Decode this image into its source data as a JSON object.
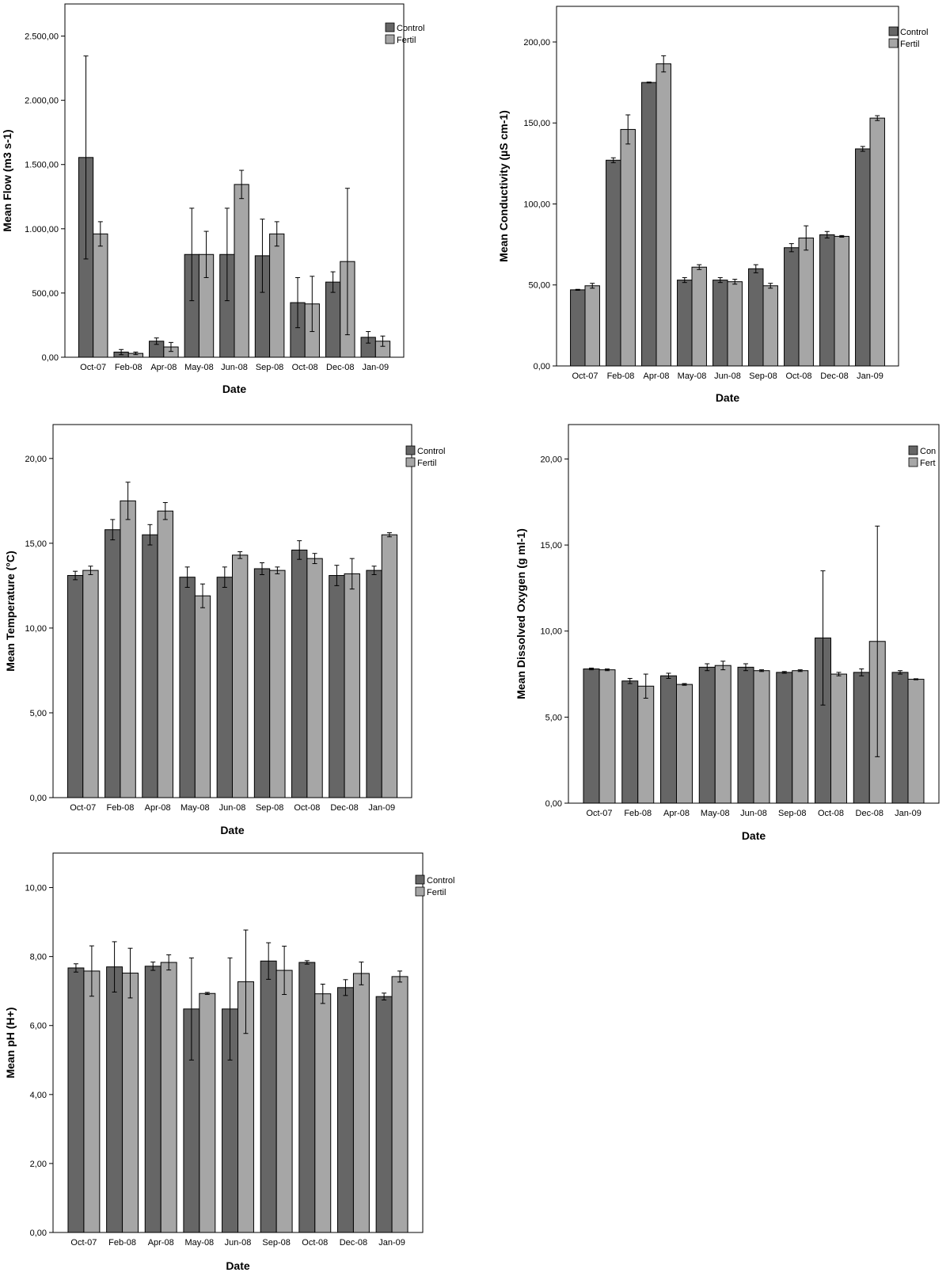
{
  "chart_data": [
    {
      "type": "bar",
      "categories": [
        "Oct-07",
        "Feb-08",
        "Apr-08",
        "May-08",
        "Jun-08",
        "Sep-08",
        "Oct-08",
        "Dec-08",
        "Jan-09"
      ],
      "xlabel": "Date",
      "ylabel": "Mean Flow (m3 s-1)",
      "ylim": [
        0,
        2750
      ],
      "yticks": [
        0,
        500,
        1000,
        1500,
        2000,
        2500
      ],
      "ytick_labels": [
        "0,00",
        "500,00",
        "1.000,00",
        "1.500,00",
        "2.000,00",
        "2.500,00"
      ],
      "legend": "top-right",
      "series": [
        {
          "name": "Control",
          "color": "#666666",
          "values": [
            1555,
            40,
            125,
            800,
            800,
            790,
            425,
            585,
            155
          ],
          "err": [
            790,
            20,
            25,
            360,
            360,
            285,
            195,
            80,
            45
          ]
        },
        {
          "name": "Fertil",
          "color": "#a6a6a6",
          "values": [
            960,
            30,
            80,
            800,
            1345,
            960,
            415,
            745,
            125
          ],
          "err": [
            95,
            10,
            35,
            180,
            110,
            95,
            215,
            570,
            40
          ]
        }
      ]
    },
    {
      "type": "bar",
      "categories": [
        "Oct-07",
        "Feb-08",
        "Apr-08",
        "May-08",
        "Jun-08",
        "Sep-08",
        "Oct-08",
        "Dec-08",
        "Jan-09"
      ],
      "xlabel": "Date",
      "ylabel": "Mean Conductivity (µS cm-1)",
      "ylim": [
        0,
        222
      ],
      "yticks": [
        0,
        50,
        100,
        150,
        200
      ],
      "ytick_labels": [
        "0,00",
        "50,00",
        "100,00",
        "150,00",
        "200,00"
      ],
      "legend": "top-right",
      "series": [
        {
          "name": "Control",
          "color": "#666666",
          "values": [
            47,
            127,
            175,
            53,
            53,
            60,
            73,
            81,
            134
          ],
          "err": [
            0.3,
            1.5,
            0.3,
            1.5,
            1.5,
            2.5,
            2.5,
            2,
            1.5
          ]
        },
        {
          "name": "Fertil",
          "color": "#a6a6a6",
          "values": [
            49.5,
            146,
            186.5,
            61,
            52,
            49.5,
            79,
            80,
            153
          ],
          "err": [
            1.5,
            9,
            5,
            1.5,
            1.5,
            1.5,
            7.5,
            0.5,
            1.5
          ]
        }
      ]
    },
    {
      "type": "bar",
      "categories": [
        "Oct-07",
        "Feb-08",
        "Apr-08",
        "May-08",
        "Jun-08",
        "Sep-08",
        "Oct-08",
        "Dec-08",
        "Jan-09"
      ],
      "xlabel": "Date",
      "ylabel": "Mean Temperature (°C)",
      "ylim": [
        0,
        22
      ],
      "yticks": [
        0,
        5,
        10,
        15,
        20
      ],
      "ytick_labels": [
        "0,00",
        "5,00",
        "10,00",
        "15,00",
        "20,00"
      ],
      "legend": "top-right",
      "series": [
        {
          "name": "Control",
          "color": "#666666",
          "values": [
            13.1,
            15.8,
            15.5,
            13.0,
            13.0,
            13.5,
            14.6,
            13.1,
            13.4
          ],
          "err": [
            0.25,
            0.6,
            0.6,
            0.6,
            0.6,
            0.35,
            0.55,
            0.6,
            0.25
          ]
        },
        {
          "name": "Fertil",
          "color": "#a6a6a6",
          "values": [
            13.4,
            17.5,
            16.9,
            11.9,
            14.3,
            13.4,
            14.1,
            13.2,
            15.5
          ],
          "err": [
            0.25,
            1.1,
            0.5,
            0.7,
            0.2,
            0.2,
            0.3,
            0.9,
            0.12
          ]
        }
      ]
    },
    {
      "type": "bar",
      "categories": [
        "Oct-07",
        "Feb-08",
        "Apr-08",
        "May-08",
        "Jun-08",
        "Sep-08",
        "Oct-08",
        "Dec-08",
        "Jan-09"
      ],
      "xlabel": "Date",
      "ylabel": "Mean Dissolved Oxygen (g ml-1)",
      "ylim": [
        0,
        22
      ],
      "yticks": [
        0,
        5,
        10,
        15,
        20
      ],
      "ytick_labels": [
        "0,00",
        "5,00",
        "10,00",
        "15,00",
        "20,00"
      ],
      "legend": "top-right",
      "series": [
        {
          "name": "Control",
          "label": "Con",
          "color": "#666666",
          "values": [
            7.8,
            7.1,
            7.4,
            7.9,
            7.9,
            7.6,
            9.6,
            7.6,
            7.6
          ],
          "err": [
            0.05,
            0.15,
            0.15,
            0.2,
            0.2,
            0.05,
            3.9,
            0.2,
            0.1
          ]
        },
        {
          "name": "Fertil",
          "label": "Fert",
          "color": "#a6a6a6",
          "values": [
            7.75,
            6.8,
            6.9,
            8.0,
            7.7,
            7.7,
            7.5,
            9.4,
            7.2
          ],
          "err": [
            0.05,
            0.7,
            0.05,
            0.25,
            0.05,
            0.05,
            0.1,
            6.7,
            0.03
          ]
        }
      ]
    },
    {
      "type": "bar",
      "categories": [
        "Oct-07",
        "Feb-08",
        "Apr-08",
        "May-08",
        "Jun-08",
        "Sep-08",
        "Oct-08",
        "Dec-08",
        "Jan-09"
      ],
      "xlabel": "Date",
      "ylabel": "Mean pH (H+)",
      "ylim": [
        0,
        11
      ],
      "yticks": [
        0,
        2,
        4,
        6,
        8,
        10
      ],
      "ytick_labels": [
        "0,00",
        "2,00",
        "4,00",
        "6,00",
        "8,00",
        "10,00"
      ],
      "legend": "top-right",
      "series": [
        {
          "name": "Control",
          "color": "#666666",
          "values": [
            7.67,
            7.7,
            7.72,
            6.48,
            6.48,
            7.87,
            7.83,
            7.1,
            6.84
          ],
          "err": [
            0.12,
            0.73,
            0.12,
            1.48,
            1.48,
            0.53,
            0.05,
            0.23,
            0.1
          ]
        },
        {
          "name": "Fertil",
          "color": "#a6a6a6",
          "values": [
            7.58,
            7.52,
            7.83,
            6.93,
            7.27,
            7.6,
            6.92,
            7.51,
            7.42
          ],
          "err": [
            0.73,
            0.72,
            0.22,
            0.03,
            1.5,
            0.7,
            0.28,
            0.33,
            0.16
          ]
        }
      ]
    }
  ]
}
